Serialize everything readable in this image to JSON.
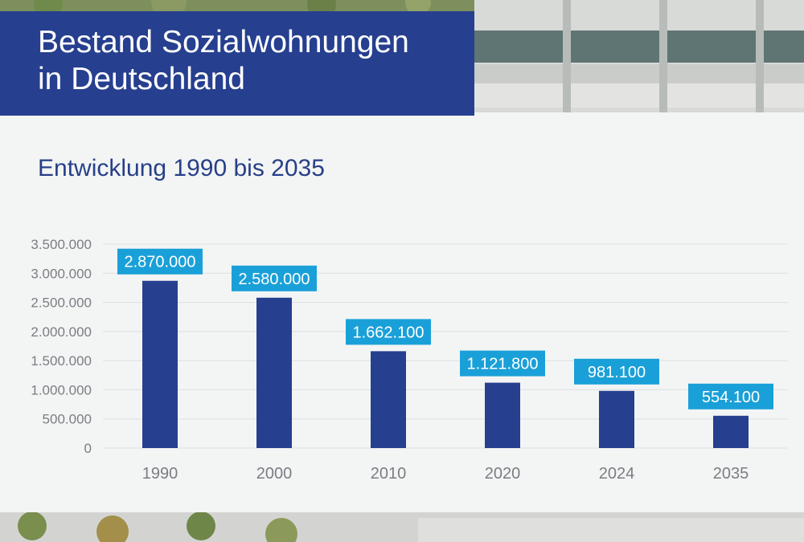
{
  "header": {
    "title_line1": "Bestand Sozialwohnungen",
    "title_line2": "in Deutschland"
  },
  "chart_data": {
    "type": "bar",
    "title": "Bestand Sozialwohnungen in Deutschland",
    "subtitle": "Entwicklung 1990 bis 2035",
    "categories": [
      "1990",
      "2000",
      "2010",
      "2020",
      "2024",
      "2035"
    ],
    "values": [
      2870000,
      2580000,
      1662100,
      1121800,
      981100,
      554100
    ],
    "data_labels": [
      "2.870.000",
      "2.580.000",
      "1.662.100",
      "1.121.800",
      "981.100",
      "554.100"
    ],
    "ylim": [
      0,
      3500000
    ],
    "yticks": [
      0,
      500000,
      1000000,
      1500000,
      2000000,
      2500000,
      3000000,
      3500000
    ],
    "ytick_labels": [
      "0",
      "500.000",
      "1.000.000",
      "1.500.000",
      "2.000.000",
      "2.500.000",
      "3.000.000",
      "3.500.000"
    ],
    "xlabel": "",
    "ylabel": "",
    "grid": true,
    "legend": "none"
  },
  "colors": {
    "bar": "#263f8f",
    "label_bg": "#1aa0d8",
    "label_text": "#ffffff",
    "title_bg": "#263f8f",
    "axis_text": "#7a7d82",
    "grid": "#dcdfe3"
  }
}
